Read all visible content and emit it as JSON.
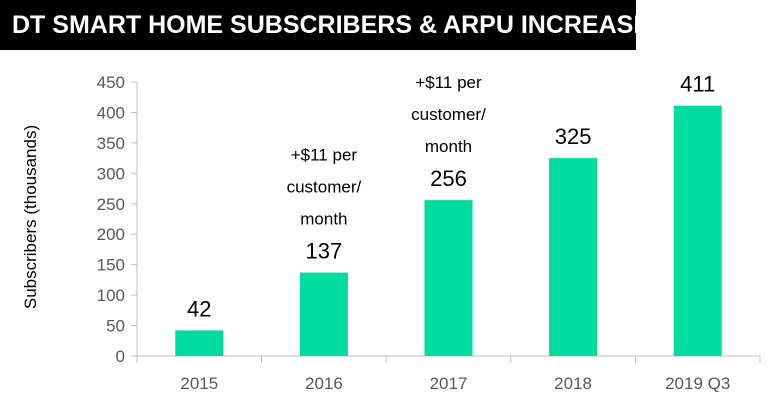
{
  "title": "DT SMART HOME SUBSCRIBERS & ARPU INCREASE",
  "chart_data": {
    "type": "bar",
    "title": "DT SMART HOME SUBSCRIBERS & ARPU INCREASE",
    "xlabel": "",
    "ylabel": "Subscribers (thousands)",
    "categories": [
      "2015",
      "2016",
      "2017",
      "2018",
      "2019 Q3"
    ],
    "values": [
      42,
      137,
      256,
      325,
      411
    ],
    "data_labels": [
      "42",
      "137",
      "256",
      "325",
      "411"
    ],
    "ylim": [
      0,
      450
    ],
    "yticks": [
      0,
      50,
      100,
      150,
      200,
      250,
      300,
      350,
      400,
      450
    ],
    "bar_color": "#00dba0",
    "grid": false,
    "annotations": [
      {
        "category": "2016",
        "lines": [
          "+$11 per",
          "customer/",
          "month"
        ]
      },
      {
        "category": "2017",
        "lines": [
          "+$11 per",
          "customer/",
          "month"
        ]
      }
    ]
  }
}
